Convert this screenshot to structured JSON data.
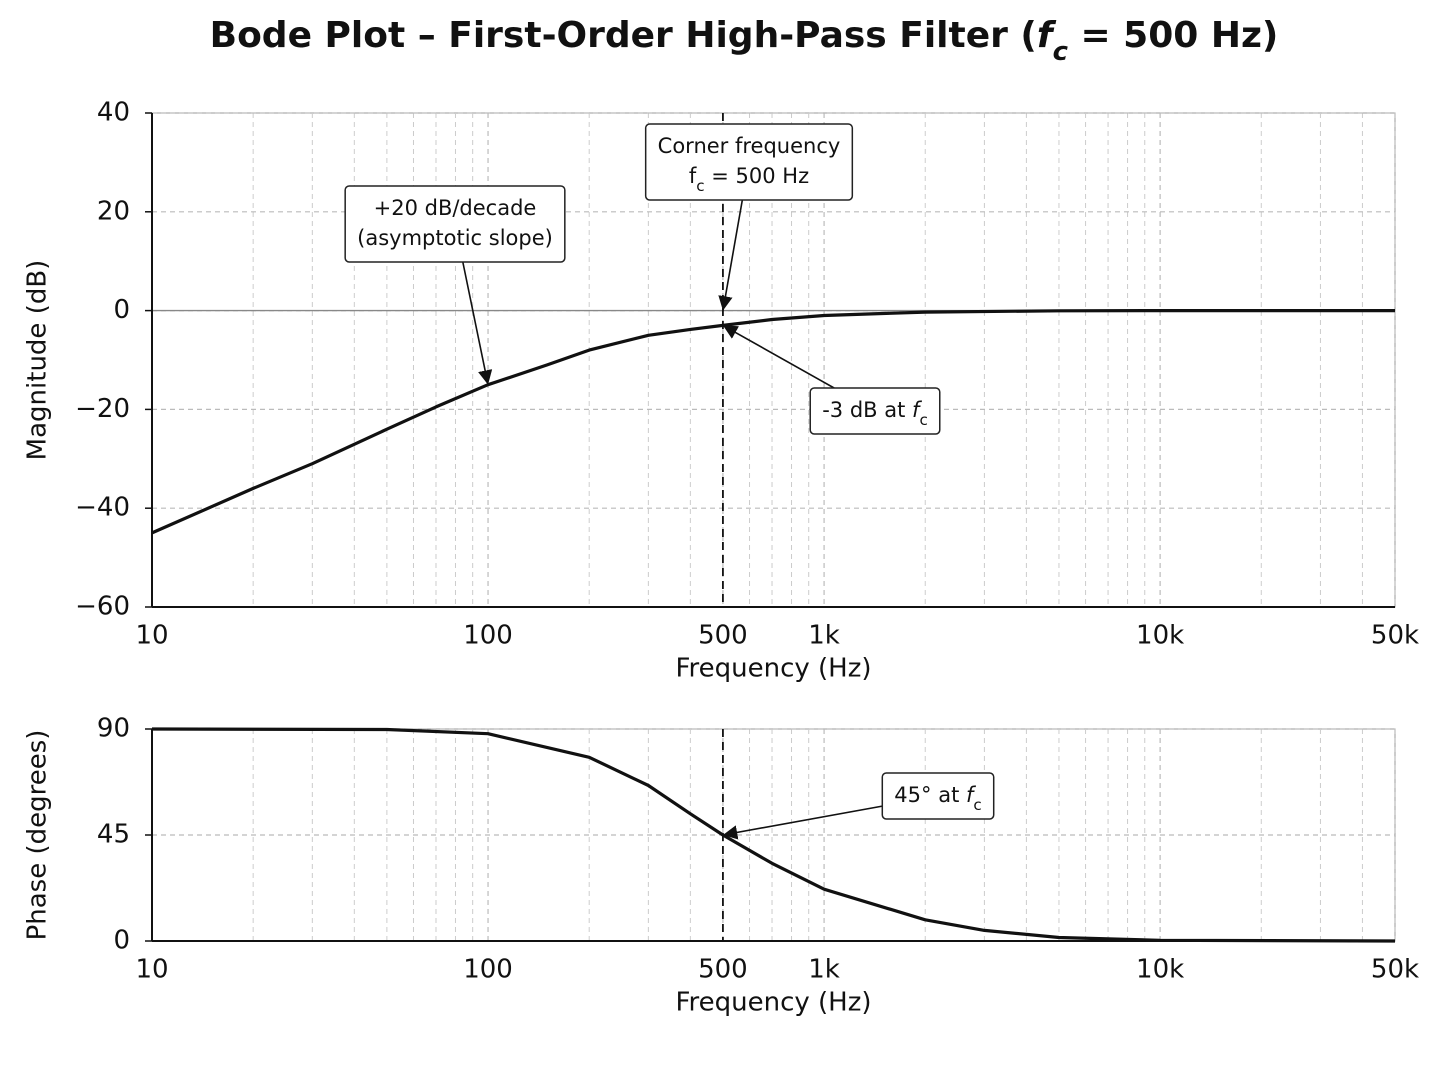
{
  "title": [
    "Bode Plot – First-Order High-Pass Filter (",
    {
      "italic": "f"
    },
    {
      "sub": "c"
    },
    " = 500 Hz)"
  ],
  "chart_data": [
    {
      "type": "line",
      "xscale": "log",
      "grid": true,
      "xlabel": "Frequency (Hz)",
      "ylabel": "Magnitude (dB)",
      "x": [
        10,
        20,
        30,
        50,
        70,
        100,
        150,
        200,
        300,
        400,
        500,
        700,
        1000,
        2000,
        5000,
        10000,
        50000
      ],
      "values": [
        -45,
        -36,
        -31,
        -24,
        -19.5,
        -15,
        -11,
        -8,
        -5,
        -3.8,
        -3,
        -1.8,
        -1,
        -0.3,
        -0.05,
        0,
        0
      ],
      "color": "#111111",
      "xlim": [
        10,
        50000
      ],
      "xticks": [
        10,
        100,
        500,
        {
          "value": 1000,
          "label": "1k"
        },
        {
          "value": 10000,
          "label": "10k"
        },
        {
          "value": 50000,
          "label": "50k"
        }
      ],
      "xticks_minor": [
        20,
        30,
        40,
        50,
        60,
        70,
        80,
        90,
        200,
        300,
        400,
        600,
        700,
        800,
        900,
        2000,
        3000,
        4000,
        5000,
        6000,
        7000,
        8000,
        9000,
        20000,
        30000,
        40000
      ],
      "ylim": [
        -60,
        40
      ],
      "yticks": [
        {
          "value": -60,
          "label": "−60"
        },
        {
          "value": -40,
          "label": "−40"
        },
        {
          "value": -20,
          "label": "−20"
        },
        0,
        20,
        40
      ],
      "vline": 500,
      "annotations": [
        {
          "lines": [
            [
              "+20 dB/decade"
            ],
            [
              "(asymptotic slope)"
            ]
          ],
          "target": [
            100,
            -15
          ]
        },
        {
          "lines": [
            [
              "Corner frequency"
            ],
            [
              "f",
              {
                "sub": "c"
              },
              " = 500 Hz"
            ]
          ],
          "target": [
            500,
            0
          ]
        },
        {
          "lines": [
            [
              "-3 dB at ",
              {
                "italic": "f"
              },
              {
                "sub": "c"
              }
            ]
          ],
          "target": [
            500,
            -3
          ]
        }
      ]
    },
    {
      "type": "line",
      "xscale": "log",
      "grid": true,
      "xlabel": "Frequency (Hz)",
      "ylabel": "Phase (degrees)",
      "x": [
        10,
        50,
        100,
        200,
        300,
        400,
        500,
        700,
        1000,
        2000,
        3000,
        5000,
        10000,
        50000
      ],
      "values": [
        90,
        89.8,
        88,
        78,
        66,
        54,
        45,
        33,
        22,
        9,
        4.5,
        1.5,
        0.3,
        0
      ],
      "color": "#111111",
      "xlim": [
        10,
        50000
      ],
      "xticks": [
        10,
        100,
        500,
        {
          "value": 1000,
          "label": "1k"
        },
        {
          "value": 10000,
          "label": "10k"
        },
        {
          "value": 50000,
          "label": "50k"
        }
      ],
      "xticks_minor": [
        20,
        30,
        40,
        50,
        60,
        70,
        80,
        90,
        200,
        300,
        400,
        600,
        700,
        800,
        900,
        2000,
        3000,
        4000,
        5000,
        6000,
        7000,
        8000,
        9000,
        20000,
        30000,
        40000
      ],
      "ylim": [
        0,
        90
      ],
      "yticks": [
        0,
        45,
        90
      ],
      "vline": 500,
      "annotations": [
        {
          "lines": [
            [
              "45° at ",
              {
                "italic": "f"
              },
              {
                "sub": "c"
              }
            ]
          ],
          "target": [
            500,
            45
          ]
        }
      ]
    }
  ]
}
